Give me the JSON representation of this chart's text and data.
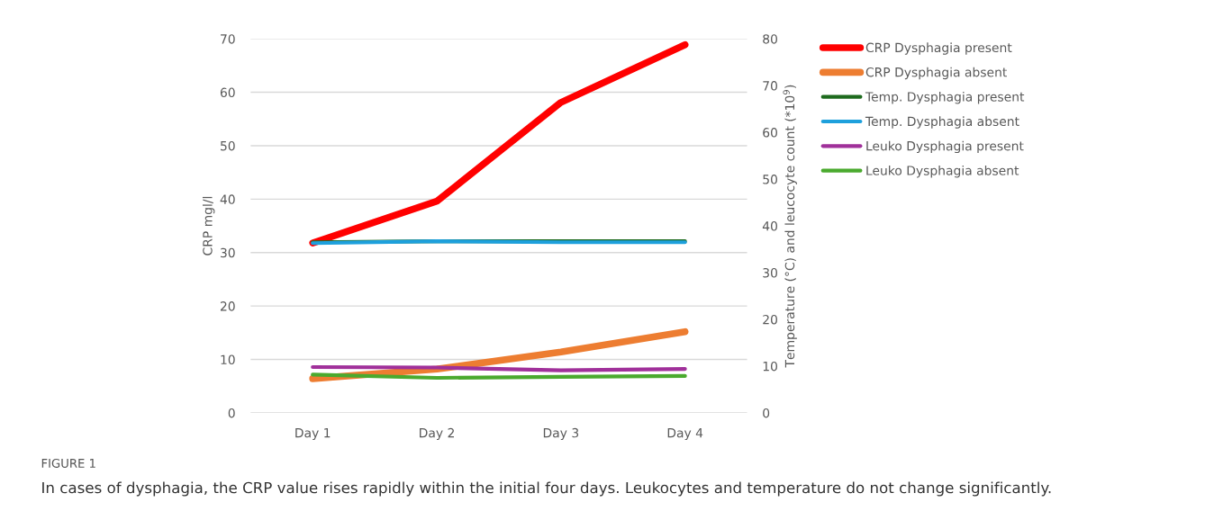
{
  "chart_data": {
    "type": "line",
    "categories": [
      "Day 1",
      "Day 2",
      "Day 3",
      "Day 4"
    ],
    "ylabel": "CRP mgl/l",
    "y2label": "Temperature (°C) and leucocyte count (*10$^{9}$)",
    "ylim": [
      0,
      70
    ],
    "yticks": [
      0,
      10,
      20,
      30,
      40,
      50,
      60,
      70
    ],
    "y2lim": [
      0,
      80
    ],
    "y2ticks": [
      0,
      10,
      20,
      30,
      40,
      50,
      60,
      70,
      80
    ],
    "grid": "y",
    "legend": "right",
    "marker": "none",
    "line_style": "solid",
    "series": [
      {
        "name": "CRP Dysphagia present",
        "color": "#ff0000",
        "values": [
          31.8,
          39.6,
          58.1,
          68.9
        ]
      },
      {
        "name": "CRP Dysphagia absent",
        "color": "#ed7d31",
        "values": [
          6.4,
          8.2,
          11.4,
          15.2
        ]
      },
      {
        "name": "Temp. Dysphagia present",
        "color": "#1e6b1e",
        "axis": "y2",
        "values": [
          36.5,
          36.7,
          36.7,
          36.7
        ]
      },
      {
        "name": "Temp. Dysphagia absent",
        "color": "#1ea0dc",
        "axis": "y2",
        "values": [
          36.3,
          36.7,
          36.5,
          36.5
        ]
      },
      {
        "name": "Leuko Dysphagia present",
        "color": "#a0309a",
        "axis": "y2",
        "values": [
          9.8,
          9.7,
          9.1,
          9.4
        ]
      },
      {
        "name": "Leuko Dysphagia absent",
        "color": "#4aaa2e",
        "axis": "y2",
        "values": [
          8.2,
          7.5,
          7.7,
          7.9
        ]
      }
    ],
    "annotations": [
      "FIGURE 1",
      "In cases of dysphagia, the CRP value rises rapidly within the initial four days. Leukocytes and temperature do not change significantly."
    ]
  }
}
